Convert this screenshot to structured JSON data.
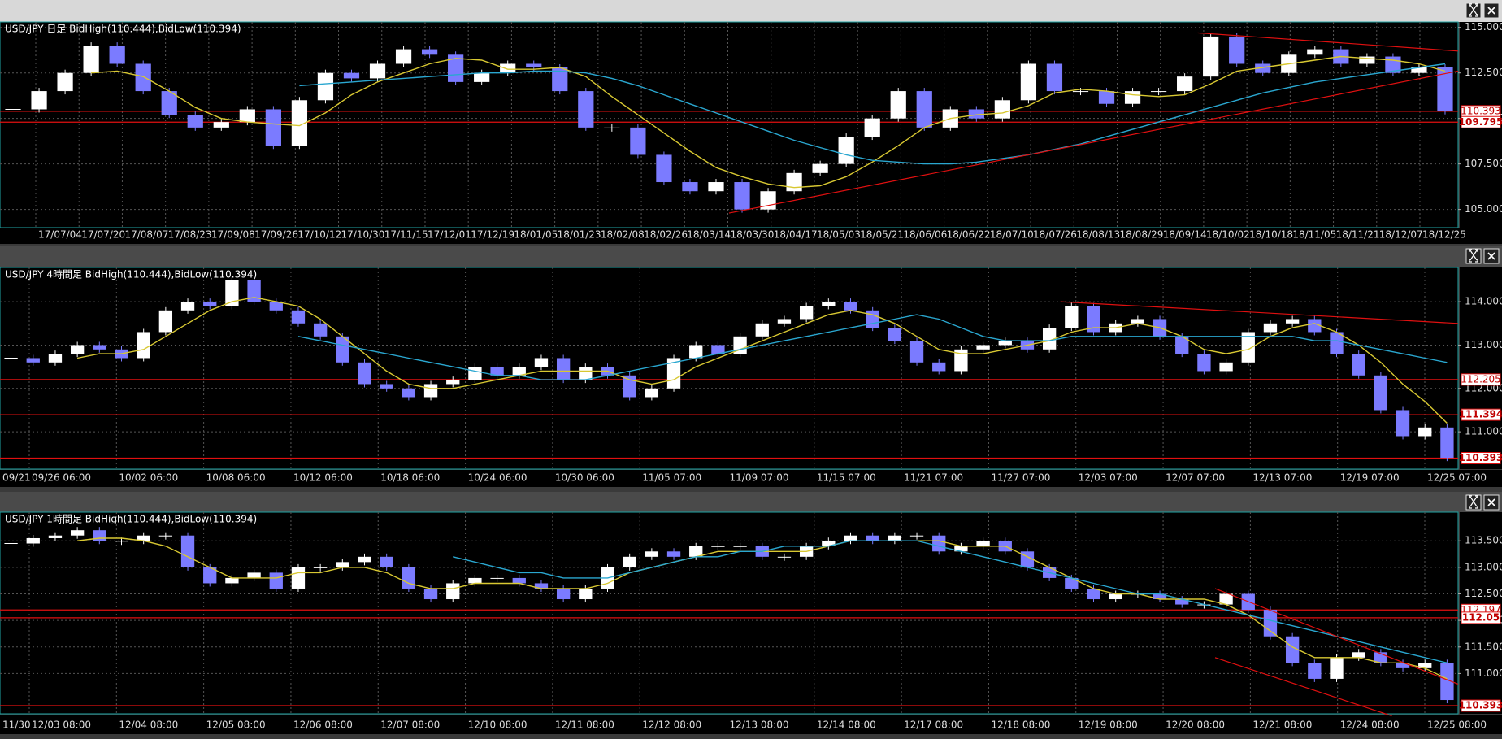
{
  "chart_data": [
    {
      "type": "candlestick",
      "title": "USD/JPY 日足  BidHigh(110.444),BidLow(110.394)",
      "categories": [
        "17/07/04",
        "17/07/20",
        "17/08/07",
        "17/08/23",
        "17/09/08",
        "17/09/26",
        "17/10/12",
        "17/10/30",
        "17/11/15",
        "17/12/01",
        "17/12/19",
        "18/01/05",
        "18/01/23",
        "18/02/08",
        "18/02/26",
        "18/03/14",
        "18/03/30",
        "18/04/17",
        "18/05/03",
        "18/05/21",
        "18/06/06",
        "18/06/22",
        "18/07/10",
        "18/07/26",
        "18/08/13",
        "18/08/29",
        "18/09/14",
        "18/10/02",
        "18/10/18",
        "18/11/05",
        "18/11/21",
        "18/12/07",
        "18/12/25"
      ],
      "closes": [
        110.5,
        111.5,
        112.5,
        114,
        113,
        111.5,
        110.2,
        109.5,
        109.8,
        110.5,
        108.5,
        111,
        112.5,
        112.2,
        113,
        113.8,
        113.5,
        112,
        112.5,
        113,
        112.8,
        111.5,
        109.5,
        109.5,
        108,
        106.5,
        106,
        106.5,
        105,
        106,
        107,
        107.5,
        109,
        110,
        111.5,
        109.5,
        110.5,
        110,
        111,
        113,
        111.5,
        111.5,
        110.8,
        111.5,
        111.5,
        112.3,
        114.5,
        113,
        112.5,
        113.5,
        113.8,
        113,
        113.4,
        112.5,
        112.8,
        110.4
      ],
      "up_color": "#ffffff",
      "down_color": "#7b7bff",
      "ma": [
        {
          "color": "#d8c832",
          "values": [
            null,
            null,
            null,
            112.5,
            112.6,
            112.3,
            111.5,
            110.6,
            110,
            109.8,
            109.7,
            109.6,
            110.3,
            111.3,
            112,
            112.5,
            113,
            113.3,
            113.2,
            112.7,
            112.7,
            112.8,
            112.3,
            111.2,
            110.2,
            109.2,
            108.2,
            107.3,
            106.8,
            106.4,
            106.2,
            106.3,
            106.8,
            107.6,
            108.5,
            109.5,
            110,
            110.2,
            110.3,
            110.7,
            111.4,
            111.6,
            111.5,
            111.3,
            111.2,
            111.3,
            111.9,
            112.6,
            112.8,
            113,
            113.2,
            113.4,
            113.3,
            113.2,
            113,
            112.6
          ]
        },
        {
          "color": "#2aa7d0",
          "values": [
            null,
            null,
            null,
            null,
            null,
            null,
            null,
            null,
            null,
            null,
            null,
            111.8,
            111.9,
            112,
            112.1,
            112.2,
            112.3,
            112.4,
            112.5,
            112.5,
            112.6,
            112.6,
            112.5,
            112.2,
            111.8,
            111.3,
            110.8,
            110.3,
            109.8,
            109.3,
            108.8,
            108.4,
            108,
            107.7,
            107.6,
            107.5,
            107.5,
            107.6,
            107.8,
            108,
            108.3,
            108.6,
            109,
            109.4,
            109.8,
            110.2,
            110.6,
            111,
            111.4,
            111.7,
            112,
            112.2,
            112.4,
            112.6,
            112.8,
            113
          ]
        }
      ],
      "hlines": [
        110.393,
        109.795
      ],
      "hline_color": "#e01010",
      "trendlines": [
        {
          "x": [
            27.5,
            55.5
          ],
          "y": [
            104.8,
            112.6
          ]
        },
        {
          "x": [
            45.5,
            55.5
          ],
          "y": [
            114.7,
            113.7
          ]
        }
      ],
      "ylim": [
        104.0,
        115.3
      ],
      "yticks": [
        {
          "value": 105,
          "label": "105.000"
        },
        {
          "value": 107.5,
          "label": "107.500"
        },
        {
          "value": 110,
          "label": "110.000"
        },
        {
          "value": 112.5,
          "label": "112.500"
        },
        {
          "value": 115,
          "label": "115.000"
        }
      ],
      "grid": true
    },
    {
      "type": "candlestick",
      "title": "USD/JPY 4時間足  BidHigh(110.444),BidLow(110.394)",
      "categories": [
        "09/21",
        "09/26 06:00",
        "10/02 06:00",
        "10/08 06:00",
        "10/12 06:00",
        "10/18 06:00",
        "10/24 06:00",
        "10/30 06:00",
        "11/05 07:00",
        "11/09 07:00",
        "11/15 07:00",
        "11/21 07:00",
        "11/27 07:00",
        "12/03 07:00",
        "12/07 07:00",
        "12/13 07:00",
        "12/19 07:00",
        "12/25 07:00"
      ],
      "closes": [
        112.7,
        112.6,
        112.8,
        113,
        112.9,
        112.7,
        113.3,
        113.8,
        114,
        113.9,
        114.5,
        114,
        113.8,
        113.5,
        113.2,
        112.6,
        112.1,
        112,
        111.8,
        112.1,
        112.2,
        112.5,
        112.3,
        112.5,
        112.7,
        112.2,
        112.5,
        112.3,
        111.8,
        112,
        112.7,
        113,
        112.8,
        113.2,
        113.5,
        113.6,
        113.9,
        114,
        113.8,
        113.4,
        113.1,
        112.6,
        112.4,
        112.9,
        113,
        113.1,
        112.9,
        113.4,
        113.9,
        113.3,
        113.5,
        113.6,
        113.2,
        112.8,
        112.4,
        112.6,
        113.3,
        113.5,
        113.6,
        113.3,
        112.8,
        112.3,
        111.5,
        110.9,
        111.1,
        110.4
      ],
      "up_color": "#ffffff",
      "down_color": "#7b7bff",
      "ma": [
        {
          "color": "#d8c832",
          "values": [
            null,
            null,
            null,
            112.7,
            112.8,
            112.8,
            112.9,
            113.2,
            113.5,
            113.8,
            114,
            114.1,
            114,
            113.9,
            113.6,
            113.2,
            112.8,
            112.4,
            112.1,
            112,
            112,
            112.1,
            112.2,
            112.3,
            112.4,
            112.4,
            112.4,
            112.4,
            112.2,
            112.1,
            112.2,
            112.5,
            112.7,
            112.9,
            113.1,
            113.3,
            113.5,
            113.7,
            113.8,
            113.7,
            113.5,
            113.2,
            112.9,
            112.8,
            112.8,
            112.9,
            113,
            113.1,
            113.3,
            113.4,
            113.4,
            113.5,
            113.4,
            113.2,
            112.9,
            112.8,
            112.9,
            113.2,
            113.4,
            113.5,
            113.3,
            113,
            112.6,
            112.1,
            111.7,
            111.2
          ]
        },
        {
          "color": "#2aa7d0",
          "values": [
            null,
            null,
            null,
            null,
            null,
            null,
            null,
            null,
            null,
            null,
            null,
            null,
            null,
            113.2,
            113.1,
            113,
            112.9,
            112.8,
            112.7,
            112.6,
            112.5,
            112.4,
            112.3,
            112.3,
            112.2,
            112.2,
            112.2,
            112.3,
            112.4,
            112.5,
            112.6,
            112.7,
            112.8,
            112.9,
            113,
            113.1,
            113.2,
            113.3,
            113.4,
            113.5,
            113.6,
            113.7,
            113.6,
            113.4,
            113.2,
            113.1,
            113.1,
            113.1,
            113.2,
            113.2,
            113.2,
            113.2,
            113.2,
            113.2,
            113.2,
            113.2,
            113.2,
            113.2,
            113.2,
            113.1,
            113.1,
            113,
            112.9,
            112.8,
            112.7,
            112.6
          ]
        }
      ],
      "hlines": [
        112.205,
        111.394,
        110.393
      ],
      "hline_color": "#e01010",
      "trendlines": [
        {
          "x": [
            47.5,
            65.5
          ],
          "y": [
            114.0,
            113.5
          ]
        }
      ],
      "ylim": [
        110.14,
        114.79
      ],
      "yticks": [
        {
          "value": 111,
          "label": "111.000"
        },
        {
          "value": 112,
          "label": "112.000"
        },
        {
          "value": 113,
          "label": "113.000"
        },
        {
          "value": 114,
          "label": "114.000"
        }
      ],
      "grid": true
    },
    {
      "type": "candlestick",
      "title": "USD/JPY 1時間足  BidHigh(110.444),BidLow(110.394)",
      "categories": [
        "11/30",
        "12/03 08:00",
        "12/04 08:00",
        "12/05 08:00",
        "12/06 08:00",
        "12/07 08:00",
        "12/10 08:00",
        "12/11 08:00",
        "12/12 08:00",
        "12/13 08:00",
        "12/14 08:00",
        "12/17 08:00",
        "12/18 08:00",
        "12/19 08:00",
        "12/20 08:00",
        "12/21 08:00",
        "12/24 08:00",
        "12/25 08:00"
      ],
      "closes": [
        113.45,
        113.55,
        113.6,
        113.7,
        113.5,
        113.5,
        113.6,
        113.6,
        113,
        112.7,
        112.8,
        112.9,
        112.6,
        113,
        113,
        113.1,
        113.2,
        113,
        112.6,
        112.4,
        112.7,
        112.8,
        112.8,
        112.7,
        112.6,
        112.4,
        112.6,
        113,
        113.2,
        113.3,
        113.2,
        113.4,
        113.4,
        113.4,
        113.2,
        113.2,
        113.4,
        113.5,
        113.6,
        113.5,
        113.6,
        113.6,
        113.3,
        113.4,
        113.5,
        113.3,
        113,
        112.8,
        112.6,
        112.4,
        112.5,
        112.5,
        112.4,
        112.3,
        112.3,
        112.5,
        112.2,
        111.7,
        111.2,
        110.9,
        111.3,
        111.4,
        111.2,
        111.1,
        111.2,
        110.5
      ],
      "up_color": "#ffffff",
      "down_color": "#7b7bff",
      "ma": [
        {
          "color": "#d8c832",
          "values": [
            null,
            null,
            null,
            113.5,
            113.55,
            113.55,
            113.5,
            113.4,
            113.2,
            113,
            112.8,
            112.8,
            112.8,
            112.9,
            112.9,
            113,
            113,
            112.9,
            112.7,
            112.6,
            112.6,
            112.7,
            112.7,
            112.7,
            112.6,
            112.6,
            112.6,
            112.7,
            112.9,
            113,
            113.1,
            113.2,
            113.3,
            113.3,
            113.3,
            113.3,
            113.3,
            113.4,
            113.5,
            113.5,
            113.5,
            113.5,
            113.5,
            113.4,
            113.4,
            113.4,
            113.2,
            113,
            112.8,
            112.6,
            112.5,
            112.5,
            112.4,
            112.4,
            112.4,
            112.3,
            112.1,
            111.8,
            111.5,
            111.3,
            111.3,
            111.3,
            111.2,
            111.2,
            111.1,
            110.9
          ]
        },
        {
          "color": "#2aa7d0",
          "values": [
            null,
            null,
            null,
            null,
            null,
            null,
            null,
            null,
            null,
            null,
            null,
            null,
            null,
            null,
            null,
            null,
            null,
            null,
            null,
            null,
            113.2,
            113.1,
            113,
            112.9,
            112.9,
            112.8,
            112.8,
            112.8,
            112.9,
            113,
            113.1,
            113.2,
            113.2,
            113.3,
            113.3,
            113.4,
            113.4,
            113.4,
            113.5,
            113.5,
            113.5,
            113.5,
            113.4,
            113.3,
            113.2,
            113.1,
            113,
            112.9,
            112.8,
            112.7,
            112.6,
            112.5,
            112.5,
            112.4,
            112.3,
            112.2,
            112.1,
            112,
            111.9,
            111.8,
            111.7,
            111.6,
            111.5,
            111.4,
            111.3,
            111.2
          ]
        }
      ],
      "hlines": [
        112.197,
        112.05,
        110.393
      ],
      "hline_color": "#e01010",
      "trendlines": [
        {
          "x": [
            54.5,
            65.5
          ],
          "y": [
            112.6,
            110.8
          ]
        },
        {
          "x": [
            54.5,
            62.5
          ],
          "y": [
            111.3,
            110.2
          ]
        }
      ],
      "ylim": [
        110.24,
        114.04
      ],
      "yticks": [
        {
          "value": 111,
          "label": "111.000"
        },
        {
          "value": 111.5,
          "label": "111.500"
        },
        {
          "value": 112,
          "label": "112.000"
        },
        {
          "value": 112.5,
          "label": "112.500"
        },
        {
          "value": 113,
          "label": "113.000"
        },
        {
          "value": 113.5,
          "label": "113.500"
        }
      ],
      "grid": true
    }
  ]
}
